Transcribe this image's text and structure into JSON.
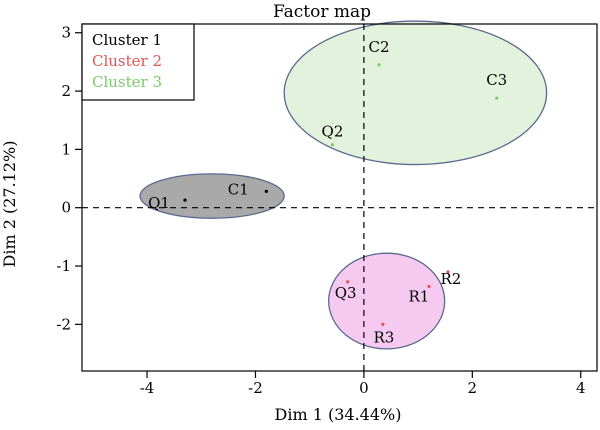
{
  "chart_data": {
    "type": "scatter",
    "title": "Factor map",
    "xlabel": "Dim 1 (34.44%)",
    "ylabel": "Dim 2 (27.12%)",
    "xlim": [
      -5.2,
      4.3
    ],
    "ylim": [
      -2.8,
      3.15
    ],
    "xticks": [
      -4,
      -2,
      0,
      2,
      4
    ],
    "yticks": [
      -2,
      -1,
      0,
      1,
      2,
      3
    ],
    "reference_lines": {
      "x": 0,
      "y": 0,
      "style": "dashed"
    },
    "legend": {
      "position": "top-left",
      "entries": [
        {
          "label": "Cluster 1",
          "color": "#000000"
        },
        {
          "label": "Cluster 2",
          "color": "#e05555"
        },
        {
          "label": "Cluster 3",
          "color": "#77cc66"
        }
      ]
    },
    "points": [
      {
        "label": "Q1",
        "x": -3.3,
        "y": 0.13,
        "cluster": 1
      },
      {
        "label": "C1",
        "x": -1.8,
        "y": 0.28,
        "cluster": 1
      },
      {
        "label": "C2",
        "x": 0.28,
        "y": 2.45,
        "cluster": 3
      },
      {
        "label": "C3",
        "x": 2.45,
        "y": 1.88,
        "cluster": 3
      },
      {
        "label": "Q2",
        "x": -0.58,
        "y": 1.08,
        "cluster": 3
      },
      {
        "label": "Q3",
        "x": -0.3,
        "y": -1.27,
        "cluster": 2
      },
      {
        "label": "R1",
        "x": 1.2,
        "y": -1.35,
        "cluster": 2
      },
      {
        "label": "R2",
        "x": 1.55,
        "y": -1.1,
        "cluster": 2
      },
      {
        "label": "R3",
        "x": 0.35,
        "y": -2.0,
        "cluster": 2
      }
    ],
    "ellipses": [
      {
        "cluster": 1,
        "cx": -2.8,
        "cy": 0.2,
        "rx": 1.33,
        "ry": 0.38,
        "fill": "#a9a9a9",
        "stroke": "#5a6a8e"
      },
      {
        "cluster": 3,
        "cx": 0.95,
        "cy": 1.97,
        "rx": 2.42,
        "ry": 1.23,
        "fill": "#e3f2dc",
        "stroke": "#5a6a8e"
      },
      {
        "cluster": 2,
        "cx": 0.42,
        "cy": -1.6,
        "rx": 1.07,
        "ry": 0.82,
        "fill": "#f6c9f1",
        "stroke": "#5a6a8e"
      }
    ]
  }
}
